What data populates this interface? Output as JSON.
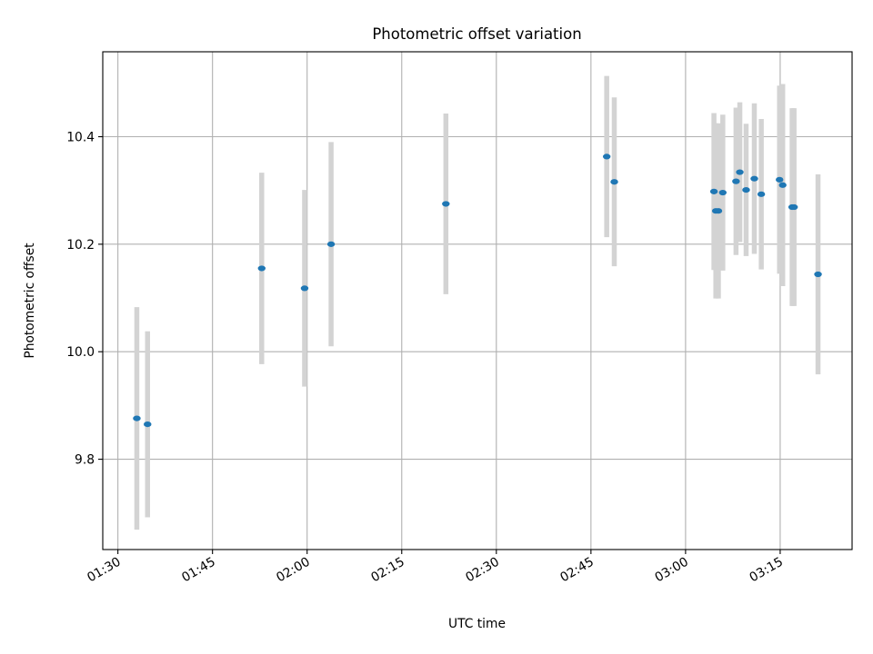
{
  "chart_data": {
    "type": "scatter",
    "title": "Photometric offset variation",
    "xlabel": "UTC time",
    "ylabel": "Photometric offset",
    "xlim": [
      "01:27:36",
      "03:26:24"
    ],
    "ylim": [
      9.632,
      10.558
    ],
    "xticks": [
      "01:30",
      "01:45",
      "02:00",
      "02:15",
      "02:30",
      "02:45",
      "03:00",
      "03:15"
    ],
    "yticks": [
      9.8,
      10.0,
      10.2,
      10.4
    ],
    "ytick_labels": [
      "9.8",
      "10.0",
      "10.2",
      "10.4"
    ],
    "grid": true,
    "marker_color": "#1f77b4",
    "errorbar_color": "#d3d3d3",
    "points": [
      {
        "x": "01:33:00",
        "y": 9.876,
        "err": 0.207
      },
      {
        "x": "01:34:42",
        "y": 9.865,
        "err": 0.173
      },
      {
        "x": "01:52:48",
        "y": 10.155,
        "err": 0.178
      },
      {
        "x": "01:59:36",
        "y": 10.118,
        "err": 0.183
      },
      {
        "x": "02:03:48",
        "y": 10.2,
        "err": 0.19
      },
      {
        "x": "02:22:00",
        "y": 10.275,
        "err": 0.168
      },
      {
        "x": "02:47:30",
        "y": 10.363,
        "err": 0.15
      },
      {
        "x": "02:48:42",
        "y": 10.316,
        "err": 0.157
      },
      {
        "x": "03:04:30",
        "y": 10.298,
        "err": 0.146
      },
      {
        "x": "03:04:48",
        "y": 10.262,
        "err": 0.163
      },
      {
        "x": "03:05:12",
        "y": 10.262,
        "err": 0.163
      },
      {
        "x": "03:05:54",
        "y": 10.296,
        "err": 0.145
      },
      {
        "x": "03:08:00",
        "y": 10.317,
        "err": 0.137
      },
      {
        "x": "03:08:36",
        "y": 10.334,
        "err": 0.13
      },
      {
        "x": "03:09:36",
        "y": 10.301,
        "err": 0.123
      },
      {
        "x": "03:10:54",
        "y": 10.322,
        "err": 0.14
      },
      {
        "x": "03:12:00",
        "y": 10.293,
        "err": 0.14
      },
      {
        "x": "03:14:54",
        "y": 10.32,
        "err": 0.175
      },
      {
        "x": "03:15:24",
        "y": 10.31,
        "err": 0.188
      },
      {
        "x": "03:16:54",
        "y": 10.269,
        "err": 0.184
      },
      {
        "x": "03:17:12",
        "y": 10.269,
        "err": 0.184
      },
      {
        "x": "03:21:00",
        "y": 10.144,
        "err": 0.186
      }
    ]
  }
}
